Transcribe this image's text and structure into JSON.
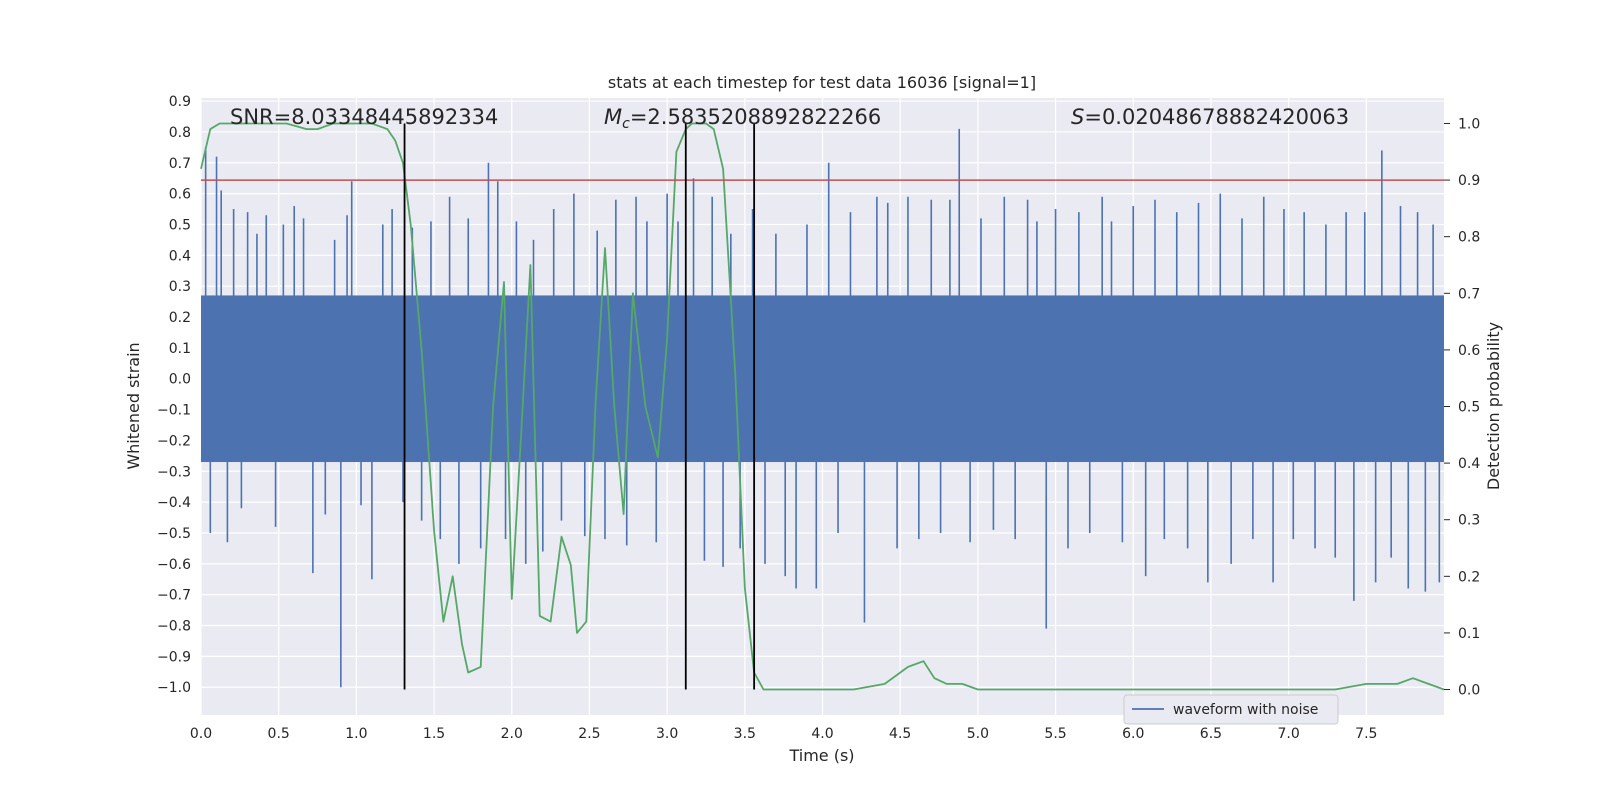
{
  "chart_data": {
    "type": "line",
    "title": "stats at each timestep for test data 16036 [signal=1]",
    "xlabel": "Time (s)",
    "ylabel": "Whitened strain",
    "y2label": "Detection probability",
    "xlim": [
      0.0,
      8.0
    ],
    "ylim": [
      -1.09,
      0.91
    ],
    "y2lim": [
      -0.045,
      1.045
    ],
    "xticks": [
      "0.0",
      "0.5",
      "1.0",
      "1.5",
      "2.0",
      "2.5",
      "3.0",
      "3.5",
      "4.0",
      "4.5",
      "5.0",
      "5.5",
      "6.0",
      "6.5",
      "7.0",
      "7.5"
    ],
    "yticks": [
      "0.9",
      "0.8",
      "0.7",
      "0.6",
      "0.5",
      "0.4",
      "0.3",
      "0.2",
      "0.1",
      "0.0",
      "−0.1",
      "−0.2",
      "−0.3",
      "−0.4",
      "−0.5",
      "−0.6",
      "−0.7",
      "−0.8",
      "−0.9",
      "−1.0"
    ],
    "y2ticks": [
      "1.0",
      "0.9",
      "0.8",
      "0.7",
      "0.6",
      "0.5",
      "0.4",
      "0.3",
      "0.2",
      "0.1",
      "0.0"
    ],
    "grid": true,
    "legend_placement": "lower-right",
    "annotations": {
      "snr": "SNR=8.03348445892334",
      "mc_symbol": "M",
      "mc_sub": "c",
      "mc_value": "=2.5835208892822266",
      "s_symbol": "S",
      "s_value": "=0.02048678882420063"
    },
    "series": [
      {
        "name": "waveform with noise",
        "axis": "left",
        "color": "#4c72b0",
        "band": {
          "upper": 0.27,
          "lower": -0.27
        },
        "spikes": [
          {
            "x": 0.03,
            "y": 0.75
          },
          {
            "x": 0.06,
            "y": -0.5
          },
          {
            "x": 0.1,
            "y": 0.72
          },
          {
            "x": 0.13,
            "y": 0.61
          },
          {
            "x": 0.17,
            "y": -0.53
          },
          {
            "x": 0.21,
            "y": 0.55
          },
          {
            "x": 0.26,
            "y": -0.42
          },
          {
            "x": 0.3,
            "y": 0.54
          },
          {
            "x": 0.36,
            "y": 0.47
          },
          {
            "x": 0.42,
            "y": 0.53
          },
          {
            "x": 0.48,
            "y": -0.48
          },
          {
            "x": 0.53,
            "y": 0.5
          },
          {
            "x": 0.6,
            "y": 0.56
          },
          {
            "x": 0.66,
            "y": 0.52
          },
          {
            "x": 0.72,
            "y": -0.63
          },
          {
            "x": 0.8,
            "y": -0.44
          },
          {
            "x": 0.86,
            "y": 0.45
          },
          {
            "x": 0.9,
            "y": -1.0
          },
          {
            "x": 0.94,
            "y": 0.53
          },
          {
            "x": 0.97,
            "y": 0.64
          },
          {
            "x": 1.03,
            "y": -0.41
          },
          {
            "x": 1.1,
            "y": -0.65
          },
          {
            "x": 1.17,
            "y": 0.5
          },
          {
            "x": 1.23,
            "y": 0.55
          },
          {
            "x": 1.3,
            "y": -0.4
          },
          {
            "x": 1.36,
            "y": 0.49
          },
          {
            "x": 1.42,
            "y": -0.46
          },
          {
            "x": 1.48,
            "y": 0.51
          },
          {
            "x": 1.54,
            "y": -0.52
          },
          {
            "x": 1.6,
            "y": 0.59
          },
          {
            "x": 1.66,
            "y": -0.6
          },
          {
            "x": 1.72,
            "y": 0.52
          },
          {
            "x": 1.8,
            "y": -0.55
          },
          {
            "x": 1.85,
            "y": 0.7
          },
          {
            "x": 1.91,
            "y": 0.64
          },
          {
            "x": 1.96,
            "y": -0.52
          },
          {
            "x": 2.03,
            "y": 0.51
          },
          {
            "x": 2.09,
            "y": -0.6
          },
          {
            "x": 2.14,
            "y": 0.45
          },
          {
            "x": 2.2,
            "y": -0.56
          },
          {
            "x": 2.27,
            "y": 0.55
          },
          {
            "x": 2.32,
            "y": -0.46
          },
          {
            "x": 2.4,
            "y": 0.6
          },
          {
            "x": 2.47,
            "y": -0.51
          },
          {
            "x": 2.55,
            "y": 0.48
          },
          {
            "x": 2.6,
            "y": -0.52
          },
          {
            "x": 2.67,
            "y": 0.58
          },
          {
            "x": 2.74,
            "y": -0.54
          },
          {
            "x": 2.8,
            "y": 0.59
          },
          {
            "x": 2.87,
            "y": 0.51
          },
          {
            "x": 2.93,
            "y": -0.53
          },
          {
            "x": 3.0,
            "y": 0.6
          },
          {
            "x": 3.07,
            "y": 0.51
          },
          {
            "x": 3.12,
            "y": -0.62
          },
          {
            "x": 3.17,
            "y": 0.65
          },
          {
            "x": 3.24,
            "y": -0.59
          },
          {
            "x": 3.29,
            "y": 0.59
          },
          {
            "x": 3.36,
            "y": -0.61
          },
          {
            "x": 3.41,
            "y": 0.47
          },
          {
            "x": 3.47,
            "y": -0.55
          },
          {
            "x": 3.55,
            "y": 0.55
          },
          {
            "x": 3.63,
            "y": -0.6
          },
          {
            "x": 3.7,
            "y": 0.47
          },
          {
            "x": 3.76,
            "y": -0.64
          },
          {
            "x": 3.83,
            "y": -0.68
          },
          {
            "x": 3.9,
            "y": 0.5
          },
          {
            "x": 3.96,
            "y": -0.68
          },
          {
            "x": 4.04,
            "y": 0.7
          },
          {
            "x": 4.1,
            "y": -0.5
          },
          {
            "x": 4.18,
            "y": 0.54
          },
          {
            "x": 4.27,
            "y": -0.79
          },
          {
            "x": 4.35,
            "y": 0.59
          },
          {
            "x": 4.42,
            "y": 0.57
          },
          {
            "x": 4.48,
            "y": -0.55
          },
          {
            "x": 4.55,
            "y": 0.59
          },
          {
            "x": 4.62,
            "y": -0.52
          },
          {
            "x": 4.7,
            "y": 0.58
          },
          {
            "x": 4.76,
            "y": -0.5
          },
          {
            "x": 4.82,
            "y": 0.58
          },
          {
            "x": 4.88,
            "y": 0.81
          },
          {
            "x": 4.95,
            "y": -0.53
          },
          {
            "x": 5.02,
            "y": 0.52
          },
          {
            "x": 5.1,
            "y": -0.49
          },
          {
            "x": 5.17,
            "y": 0.59
          },
          {
            "x": 5.24,
            "y": -0.52
          },
          {
            "x": 5.32,
            "y": 0.58
          },
          {
            "x": 5.38,
            "y": 0.51
          },
          {
            "x": 5.44,
            "y": -0.81
          },
          {
            "x": 5.5,
            "y": 0.55
          },
          {
            "x": 5.58,
            "y": -0.55
          },
          {
            "x": 5.65,
            "y": 0.54
          },
          {
            "x": 5.72,
            "y": -0.5
          },
          {
            "x": 5.8,
            "y": 0.59
          },
          {
            "x": 5.86,
            "y": 0.51
          },
          {
            "x": 5.93,
            "y": -0.53
          },
          {
            "x": 6.0,
            "y": 0.56
          },
          {
            "x": 6.08,
            "y": -0.64
          },
          {
            "x": 6.14,
            "y": 0.58
          },
          {
            "x": 6.2,
            "y": -0.52
          },
          {
            "x": 6.28,
            "y": 0.54
          },
          {
            "x": 6.35,
            "y": -0.55
          },
          {
            "x": 6.42,
            "y": 0.57
          },
          {
            "x": 6.48,
            "y": -0.66
          },
          {
            "x": 6.56,
            "y": 0.6
          },
          {
            "x": 6.63,
            "y": -0.6
          },
          {
            "x": 6.7,
            "y": 0.52
          },
          {
            "x": 6.77,
            "y": -0.52
          },
          {
            "x": 6.84,
            "y": 0.59
          },
          {
            "x": 6.9,
            "y": -0.66
          },
          {
            "x": 6.97,
            "y": 0.55
          },
          {
            "x": 7.03,
            "y": -0.52
          },
          {
            "x": 7.1,
            "y": 0.54
          },
          {
            "x": 7.17,
            "y": -0.55
          },
          {
            "x": 7.24,
            "y": 0.5
          },
          {
            "x": 7.3,
            "y": -0.58
          },
          {
            "x": 7.37,
            "y": 0.54
          },
          {
            "x": 7.42,
            "y": -0.72
          },
          {
            "x": 7.49,
            "y": 0.54
          },
          {
            "x": 7.56,
            "y": -0.66
          },
          {
            "x": 7.6,
            "y": 0.74
          },
          {
            "x": 7.66,
            "y": -0.58
          },
          {
            "x": 7.72,
            "y": 0.56
          },
          {
            "x": 7.77,
            "y": -0.68
          },
          {
            "x": 7.83,
            "y": 0.54
          },
          {
            "x": 7.88,
            "y": -0.69
          },
          {
            "x": 7.93,
            "y": 0.5
          },
          {
            "x": 7.97,
            "y": -0.66
          }
        ]
      },
      {
        "name": "",
        "axis": "right",
        "color": "#55a868",
        "x": [
          0.0,
          0.06,
          0.12,
          0.25,
          0.4,
          0.55,
          0.68,
          0.75,
          0.85,
          1.0,
          1.1,
          1.2,
          1.25,
          1.3,
          1.35,
          1.42,
          1.5,
          1.56,
          1.62,
          1.68,
          1.72,
          1.8,
          1.88,
          1.95,
          2.0,
          2.06,
          2.12,
          2.18,
          2.25,
          2.32,
          2.38,
          2.42,
          2.48,
          2.54,
          2.6,
          2.66,
          2.72,
          2.78,
          2.86,
          2.94,
          3.0,
          3.06,
          3.12,
          3.16,
          3.2,
          3.25,
          3.3,
          3.36,
          3.44,
          3.5,
          3.56,
          3.62,
          3.66,
          3.7,
          3.76,
          3.82,
          3.88,
          3.95,
          4.05,
          4.2,
          4.4,
          4.55,
          4.65,
          4.72,
          4.8,
          4.85,
          4.9,
          5.0,
          5.1,
          5.3,
          5.5,
          5.7,
          6.0,
          6.3,
          6.5,
          6.7,
          6.9,
          7.1,
          7.3,
          7.5,
          7.6,
          7.7,
          7.8,
          7.9,
          8.0
        ],
        "y": [
          0.92,
          0.99,
          1.0,
          1.0,
          1.0,
          1.0,
          0.99,
          0.99,
          1.0,
          1.0,
          1.0,
          0.99,
          0.97,
          0.93,
          0.82,
          0.6,
          0.28,
          0.12,
          0.2,
          0.08,
          0.03,
          0.04,
          0.5,
          0.72,
          0.16,
          0.45,
          0.75,
          0.13,
          0.12,
          0.27,
          0.22,
          0.1,
          0.12,
          0.51,
          0.78,
          0.5,
          0.31,
          0.7,
          0.5,
          0.41,
          0.62,
          0.95,
          0.99,
          1.0,
          1.0,
          1.0,
          0.99,
          0.92,
          0.55,
          0.18,
          0.03,
          0.0,
          0.0,
          0.0,
          0.0,
          0.0,
          0.0,
          0.0,
          0.0,
          0.0,
          0.01,
          0.04,
          0.05,
          0.02,
          0.01,
          0.01,
          0.01,
          0.0,
          0.0,
          0.0,
          0.0,
          0.0,
          0.0,
          0.0,
          0.0,
          0.0,
          0.0,
          0.0,
          0.0,
          0.01,
          0.01,
          0.01,
          0.02,
          0.01,
          0.0
        ]
      }
    ],
    "threshold": {
      "axis": "right",
      "y": 0.9,
      "color": "#c44e52"
    },
    "vlines": [
      1.31,
      3.12,
      3.56
    ],
    "vline_color": "#000000"
  }
}
